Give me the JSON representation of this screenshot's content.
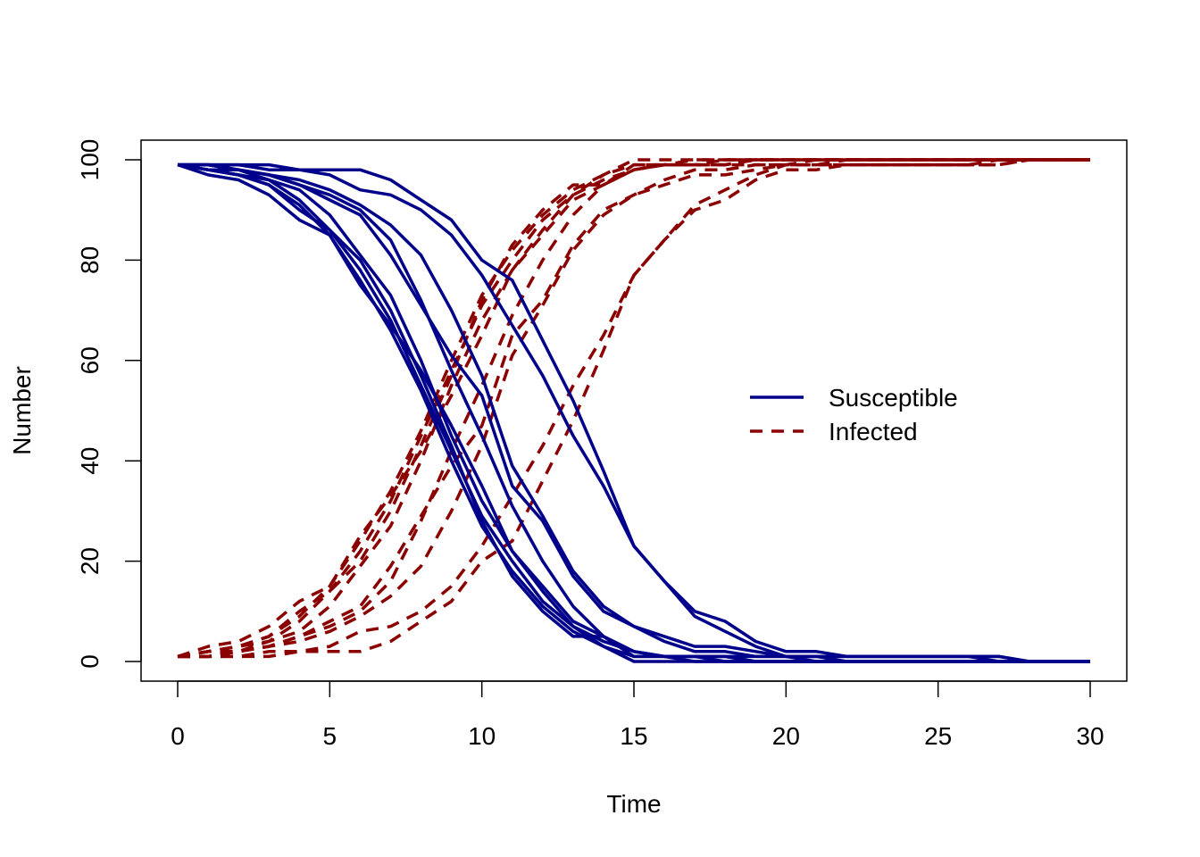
{
  "chart_data": {
    "type": "line",
    "xlabel": "Time",
    "ylabel": "Number",
    "xlim": [
      0,
      30
    ],
    "ylim": [
      0,
      100
    ],
    "xticks": [
      0,
      5,
      10,
      15,
      20,
      25,
      30
    ],
    "yticks": [
      0,
      20,
      40,
      60,
      80,
      100
    ],
    "grid": false,
    "legend": {
      "placement": "center-right",
      "entries": [
        {
          "label": "Susceptible",
          "color": "#00008B",
          "style": "solid"
        },
        {
          "label": "Infected",
          "color": "#8B0000",
          "style": "dashed"
        }
      ]
    },
    "x": [
      0,
      1,
      2,
      3,
      4,
      5,
      6,
      7,
      8,
      9,
      10,
      11,
      12,
      13,
      14,
      15,
      16,
      17,
      18,
      19,
      20,
      21,
      22,
      23,
      24,
      25,
      26,
      27,
      28,
      29,
      30
    ],
    "susceptible_series": [
      [
        99,
        98,
        97,
        96,
        94,
        89,
        81,
        73,
        60,
        45,
        32,
        22,
        15,
        8,
        5,
        2,
        1,
        1,
        1,
        0,
        0,
        0,
        0,
        0,
        0,
        0,
        0,
        0,
        0,
        0,
        0
      ],
      [
        99,
        99,
        98,
        96,
        92,
        86,
        78,
        68,
        55,
        42,
        29,
        20,
        12,
        7,
        4,
        2,
        1,
        1,
        1,
        0,
        0,
        0,
        0,
        0,
        0,
        0,
        0,
        0,
        0,
        0,
        0
      ],
      [
        99,
        98,
        97,
        95,
        91,
        85,
        76,
        66,
        54,
        40,
        27,
        18,
        11,
        6,
        3,
        1,
        1,
        0,
        0,
        0,
        0,
        0,
        0,
        0,
        0,
        0,
        0,
        0,
        0,
        0,
        0
      ],
      [
        99,
        97,
        96,
        93,
        88,
        85,
        75,
        67,
        58,
        47,
        35,
        22,
        14,
        7,
        3,
        0,
        0,
        0,
        0,
        0,
        0,
        0,
        0,
        0,
        0,
        0,
        0,
        0,
        0,
        0,
        0
      ],
      [
        99,
        98,
        97,
        95,
        90,
        86,
        80,
        70,
        57,
        43,
        28,
        17,
        10,
        5,
        5,
        1,
        1,
        1,
        1,
        1,
        1,
        1,
        0,
        0,
        0,
        0,
        0,
        0,
        0,
        0,
        0
      ],
      [
        99,
        99,
        98,
        97,
        95,
        93,
        90,
        84,
        72,
        58,
        45,
        31,
        20,
        11,
        5,
        2,
        1,
        1,
        0,
        0,
        0,
        0,
        0,
        0,
        0,
        0,
        0,
        0,
        0,
        0,
        0
      ],
      [
        99,
        99,
        98,
        97,
        96,
        94,
        91,
        87,
        81,
        70,
        57,
        39,
        29,
        18,
        11,
        7,
        5,
        3,
        3,
        2,
        1,
        0,
        0,
        0,
        0,
        0,
        0,
        0,
        0,
        0,
        0
      ],
      [
        99,
        98,
        98,
        97,
        95,
        92,
        89,
        81,
        71,
        61,
        53,
        35,
        28,
        17,
        10,
        7,
        4,
        2,
        2,
        1,
        1,
        1,
        1,
        1,
        1,
        1,
        1,
        1,
        0,
        0,
        0
      ],
      [
        99,
        99,
        99,
        99,
        98,
        98,
        98,
        96,
        92,
        88,
        80,
        76,
        64,
        52,
        38,
        23,
        16,
        10,
        8,
        4,
        2,
        2,
        1,
        1,
        1,
        1,
        1,
        1,
        0,
        0,
        0
      ],
      [
        99,
        99,
        99,
        98,
        98,
        97,
        94,
        93,
        90,
        85,
        77,
        67,
        57,
        45,
        35,
        23,
        16,
        9,
        6,
        3,
        1,
        1,
        1,
        1,
        1,
        1,
        1,
        0,
        0,
        0,
        0
      ]
    ],
    "infected_series": [
      [
        1,
        2,
        3,
        4,
        6,
        11,
        19,
        27,
        40,
        55,
        68,
        78,
        85,
        92,
        95,
        98,
        99,
        99,
        99,
        100,
        100,
        100,
        100,
        100,
        100,
        100,
        100,
        100,
        100,
        100,
        100
      ],
      [
        1,
        1,
        2,
        4,
        8,
        14,
        22,
        32,
        45,
        58,
        71,
        80,
        88,
        93,
        96,
        98,
        99,
        99,
        99,
        100,
        100,
        100,
        100,
        100,
        100,
        100,
        100,
        100,
        100,
        100,
        100
      ],
      [
        1,
        2,
        3,
        5,
        9,
        15,
        24,
        34,
        46,
        60,
        73,
        82,
        89,
        94,
        97,
        99,
        99,
        100,
        100,
        100,
        100,
        100,
        100,
        100,
        100,
        100,
        100,
        100,
        100,
        100,
        100
      ],
      [
        1,
        3,
        4,
        7,
        12,
        15,
        25,
        33,
        42,
        53,
        65,
        78,
        86,
        93,
        97,
        100,
        100,
        100,
        100,
        100,
        100,
        100,
        100,
        100,
        100,
        100,
        100,
        100,
        100,
        100,
        100
      ],
      [
        1,
        2,
        3,
        5,
        10,
        14,
        20,
        30,
        43,
        57,
        72,
        83,
        90,
        95,
        95,
        99,
        99,
        99,
        99,
        99,
        99,
        99,
        100,
        100,
        100,
        100,
        100,
        100,
        100,
        100,
        100
      ],
      [
        1,
        1,
        2,
        3,
        5,
        7,
        10,
        16,
        28,
        42,
        55,
        69,
        80,
        89,
        95,
        98,
        99,
        99,
        100,
        100,
        100,
        100,
        100,
        100,
        100,
        100,
        100,
        100,
        100,
        100,
        100
      ],
      [
        1,
        1,
        2,
        3,
        4,
        6,
        9,
        13,
        19,
        30,
        43,
        61,
        71,
        82,
        89,
        93,
        95,
        97,
        97,
        98,
        99,
        100,
        100,
        100,
        100,
        100,
        100,
        100,
        100,
        100,
        100
      ],
      [
        1,
        2,
        2,
        3,
        5,
        8,
        11,
        19,
        29,
        39,
        47,
        65,
        72,
        83,
        90,
        93,
        96,
        98,
        98,
        99,
        99,
        99,
        99,
        99,
        99,
        99,
        99,
        99,
        100,
        100,
        100
      ],
      [
        1,
        1,
        1,
        1,
        2,
        2,
        2,
        4,
        8,
        12,
        20,
        24,
        36,
        48,
        62,
        77,
        84,
        90,
        92,
        96,
        98,
        98,
        99,
        99,
        99,
        99,
        99,
        99,
        100,
        100,
        100
      ],
      [
        1,
        1,
        1,
        2,
        2,
        3,
        6,
        7,
        10,
        15,
        23,
        33,
        43,
        55,
        65,
        77,
        84,
        91,
        94,
        97,
        99,
        99,
        99,
        99,
        99,
        99,
        99,
        100,
        100,
        100,
        100
      ]
    ]
  }
}
